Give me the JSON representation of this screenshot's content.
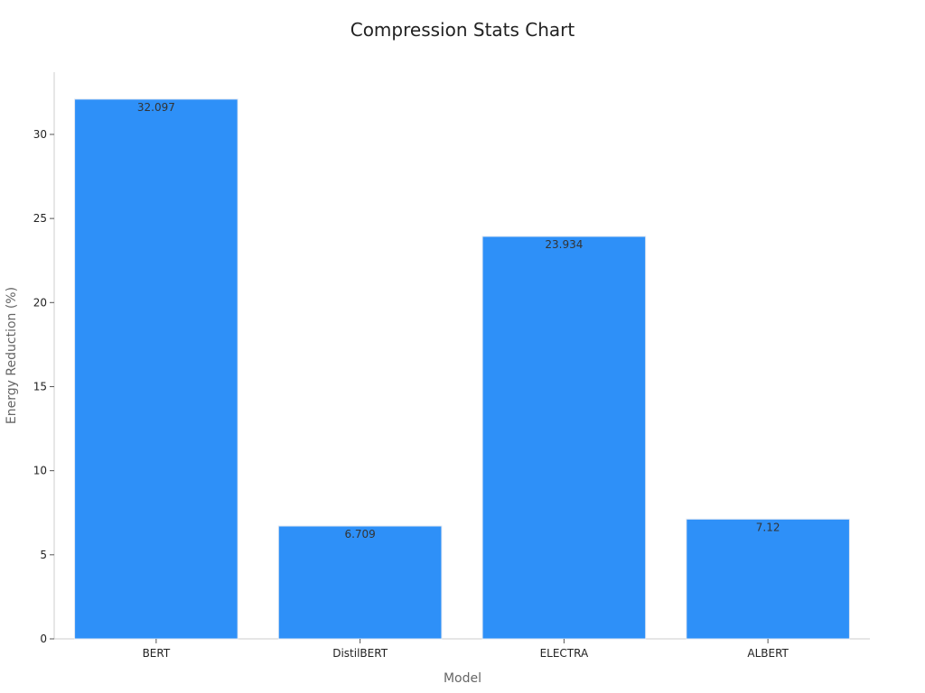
{
  "chart_data": {
    "type": "bar",
    "title": "Compression Stats Chart",
    "xlabel": "Model",
    "ylabel": "Energy Reduction (%)",
    "categories": [
      "BERT",
      "DistilBERT",
      "ELECTRA",
      "ALBERT"
    ],
    "values": [
      32.097,
      6.709,
      23.934,
      7.12
    ],
    "data_labels": [
      "32.097",
      "6.709",
      "23.934",
      "7.12"
    ],
    "yticks": [
      0,
      5,
      10,
      15,
      20,
      25,
      30
    ],
    "ylim": [
      0,
      33.7
    ],
    "grid": false,
    "legend": "none",
    "colors": {
      "bar": "#2e90f8",
      "bar_edge": "#dfe7f2",
      "axis": "#cccccc",
      "title": "#222222",
      "axis_label": "#666666",
      "tick_label": "#222222",
      "data_label": "#333333"
    }
  }
}
